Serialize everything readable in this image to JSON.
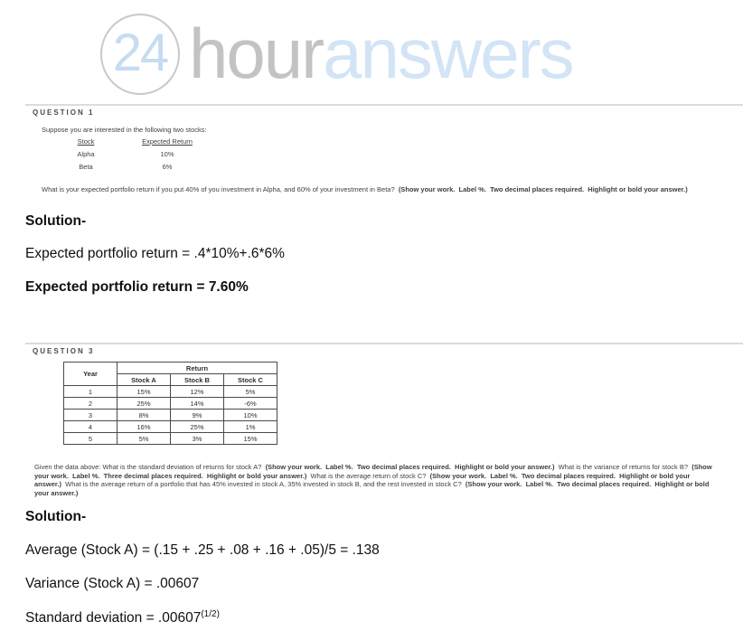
{
  "colors": {
    "logo_blue": "#c5dcf2",
    "logo_gray": "#c3c3c3",
    "logo_light_blue": "#d2e4f6",
    "divider_gray": "#dcdcdc",
    "question_text": "#3e3e3e",
    "table_border": "#4a4a4a",
    "solution_text": "#101010"
  },
  "logo": {
    "circle_text": "24",
    "word_gray": "hour",
    "word_blue": "answers"
  },
  "q1": {
    "header": "QUESTION 1",
    "intro": "Suppose you are interested in the following two stocks:",
    "table": {
      "col1_header": "Stock",
      "col2_header": "Expected Return",
      "rows": [
        [
          "Alpha",
          "10%"
        ],
        [
          "Beta",
          "6%"
        ]
      ]
    },
    "prompt": [
      {
        "text": "What is your expected portfolio return if you put 40% of you investment in Alpha, and 60% of your investment in Beta?  ",
        "bold": false
      },
      {
        "text": "(Show your work.  Label %.  Two decimal places required.  Highlight or bold your answer.)",
        "bold": true
      }
    ]
  },
  "solution1": {
    "title": "Solution-",
    "work_line": "Expected portfolio return = .4*10%+.6*6%",
    "answer_line": "Expected portfolio return = 7.60%"
  },
  "q3": {
    "header": "QUESTION 3",
    "table": {
      "corner_header": "Year",
      "group_header": "Return",
      "col_headers": [
        "Stock A",
        "Stock B",
        "Stock C"
      ],
      "rows": [
        [
          "1",
          "15%",
          "12%",
          "5%"
        ],
        [
          "2",
          "25%",
          "14%",
          "-6%"
        ],
        [
          "3",
          "8%",
          "9%",
          "10%"
        ],
        [
          "4",
          "16%",
          "25%",
          "1%"
        ],
        [
          "5",
          "5%",
          "3%",
          "15%"
        ]
      ]
    },
    "prompt": [
      {
        "text": "Given the data above: What is the standard deviation of returns for stock A?  ",
        "bold": false
      },
      {
        "text": "(Show your work.  Label %.  Two decimal places required.  Highlight or bold your answer.)",
        "bold": true
      },
      {
        "text": "  What is the variance of returns for stock B?  ",
        "bold": false
      },
      {
        "text": "(Show your work.  Label %.  Three decimal places required.  Highlight or bold your answer.)",
        "bold": true
      },
      {
        "text": "  What is the average return of stock C?  ",
        "bold": false
      },
      {
        "text": "(Show your work.  Label %.  Two decimal places required.  Highlight or bold your answer.)",
        "bold": true
      },
      {
        "text": "  What is the average return of a portfolio that has 45% invested in stock A, 35% invested in stock B, and the rest invested in stock C?  ",
        "bold": false
      },
      {
        "text": "(Show your work.  Label %.  Two decimal places required.  Highlight or bold your answer.)",
        "bold": true
      }
    ]
  },
  "solution3": {
    "title": "Solution-",
    "average_line": "Average (Stock A) = (.15 + .25 + .08 + .16 + .05)/5 = .138",
    "variance_line": "Variance (Stock A) = .00607",
    "sd_line_base": "Standard deviation = .00607",
    "sd_exponent": "(1/2)"
  }
}
